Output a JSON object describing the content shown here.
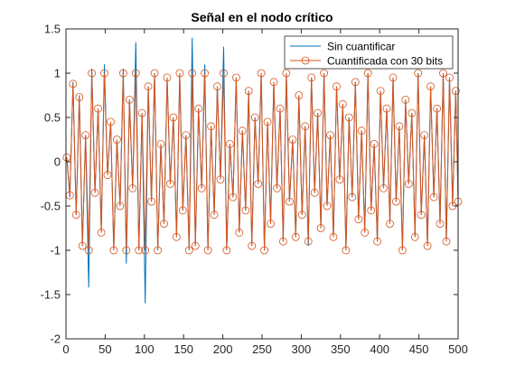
{
  "chart_data": {
    "type": "line",
    "title": "Señal en el nodo crítico",
    "xlabel": "",
    "ylabel": "",
    "xlim": [
      0,
      500
    ],
    "ylim": [
      -2,
      1.5
    ],
    "xticks": [
      "0",
      "50",
      "100",
      "150",
      "200",
      "250",
      "300",
      "350",
      "400",
      "450",
      "500"
    ],
    "yticks": [
      "-2",
      "-1.5",
      "-1",
      "-0.5",
      "0",
      "0.5",
      "1",
      "1.5"
    ],
    "grid": false,
    "legend_position": "top-right",
    "series": [
      {
        "name": "Sin cuantificar",
        "color": "#0072BD",
        "marker": "none",
        "x": [
          1,
          5,
          9,
          13,
          17,
          21,
          25,
          29,
          33,
          37,
          41,
          45,
          49,
          53,
          57,
          61,
          65,
          69,
          73,
          77,
          81,
          85,
          89,
          93,
          97,
          101,
          105,
          109,
          113,
          117,
          121,
          125,
          129,
          133,
          137,
          141,
          145,
          149,
          153,
          157,
          161,
          165,
          169,
          173,
          177,
          181,
          185,
          189,
          193,
          197,
          201,
          205,
          209,
          213,
          217,
          221,
          225,
          229,
          233,
          237,
          241,
          245,
          249,
          253,
          257,
          261,
          265,
          269,
          273,
          277,
          281,
          285,
          289,
          293,
          297,
          301,
          305,
          309,
          313,
          317,
          321,
          325,
          329,
          333,
          337,
          341,
          345,
          349,
          353,
          357,
          361,
          365,
          369,
          373,
          377,
          381,
          385,
          389,
          393,
          397,
          401,
          405,
          409,
          413,
          417,
          421,
          425,
          429,
          433,
          437,
          441,
          445,
          449,
          453,
          457,
          461,
          465,
          469,
          473,
          477,
          481,
          485,
          489,
          493,
          497,
          500
        ],
        "y": [
          0.05,
          -0.4,
          0.9,
          -0.6,
          0.75,
          -0.95,
          0.3,
          -1.42,
          1.05,
          -0.35,
          0.6,
          -0.8,
          1.1,
          -0.15,
          0.45,
          -1.0,
          0.25,
          -0.5,
          1.05,
          -1.15,
          0.7,
          -0.3,
          1.35,
          -1.0,
          0.55,
          -1.6,
          0.85,
          -0.45,
          1.0,
          -1.0,
          0.2,
          -0.7,
          0.95,
          -0.25,
          0.5,
          -0.85,
          1.0,
          -0.55,
          0.3,
          -1.0,
          1.4,
          -0.95,
          0.6,
          -0.3,
          1.1,
          -1.0,
          0.4,
          -0.6,
          0.85,
          -0.2,
          1.3,
          -1.0,
          0.2,
          -0.4,
          0.95,
          -0.8,
          0.35,
          -0.55,
          0.8,
          -0.95,
          0.5,
          -0.25,
          1.0,
          -1.0,
          0.45,
          -0.7,
          0.9,
          -0.3,
          0.6,
          -0.9,
          1.0,
          -0.45,
          0.25,
          -0.85,
          0.75,
          -0.6,
          0.4,
          -0.95,
          0.95,
          -0.35,
          0.55,
          -0.75,
          1.0,
          -0.5,
          0.3,
          -0.85,
          0.85,
          -0.2,
          0.65,
          -1.0,
          0.5,
          -0.4,
          0.9,
          -0.65,
          0.35,
          -0.8,
          1.0,
          -0.55,
          0.2,
          -0.9,
          0.8,
          -0.3,
          0.6,
          -0.7,
          0.95,
          -0.45,
          0.4,
          -1.0,
          0.7,
          -0.25,
          0.55,
          -0.85,
          1.0,
          -0.6,
          0.3,
          -0.95,
          0.85,
          -0.4,
          0.6,
          -0.7,
          1.0,
          -0.9,
          0.95,
          -0.5,
          0.8,
          -0.45
        ]
      },
      {
        "name": "Cuantificada con 30 bits",
        "color": "#D95319",
        "marker": "circle",
        "x": [
          1,
          5,
          9,
          13,
          17,
          21,
          25,
          29,
          33,
          37,
          41,
          45,
          49,
          53,
          57,
          61,
          65,
          69,
          73,
          77,
          81,
          85,
          89,
          93,
          97,
          101,
          105,
          109,
          113,
          117,
          121,
          125,
          129,
          133,
          137,
          141,
          145,
          149,
          153,
          157,
          161,
          165,
          169,
          173,
          177,
          181,
          185,
          189,
          193,
          197,
          201,
          205,
          209,
          213,
          217,
          221,
          225,
          229,
          233,
          237,
          241,
          245,
          249,
          253,
          257,
          261,
          265,
          269,
          273,
          277,
          281,
          285,
          289,
          293,
          297,
          301,
          305,
          309,
          313,
          317,
          321,
          325,
          329,
          333,
          337,
          341,
          345,
          349,
          353,
          357,
          361,
          365,
          369,
          373,
          377,
          381,
          385,
          389,
          393,
          397,
          401,
          405,
          409,
          413,
          417,
          421,
          425,
          429,
          433,
          437,
          441,
          445,
          449,
          453,
          457,
          461,
          465,
          469,
          473,
          477,
          481,
          485,
          489,
          493,
          497,
          500
        ],
        "y": [
          0.05,
          -0.38,
          0.88,
          -0.6,
          0.73,
          -0.95,
          0.3,
          -1.0,
          1.0,
          -0.35,
          0.6,
          -0.8,
          1.0,
          -0.15,
          0.45,
          -1.0,
          0.25,
          -0.5,
          1.0,
          -1.0,
          0.7,
          -0.3,
          1.0,
          -1.0,
          0.55,
          -1.0,
          0.85,
          -0.45,
          1.0,
          -1.0,
          0.2,
          -0.7,
          0.95,
          -0.25,
          0.5,
          -0.85,
          1.0,
          -0.55,
          0.3,
          -1.0,
          1.0,
          -0.95,
          0.6,
          -0.3,
          1.0,
          -1.0,
          0.4,
          -0.6,
          0.85,
          -0.2,
          1.0,
          -1.0,
          0.2,
          -0.4,
          0.95,
          -0.8,
          0.35,
          -0.55,
          0.8,
          -0.95,
          0.5,
          -0.25,
          1.0,
          -1.0,
          0.45,
          -0.7,
          0.9,
          -0.3,
          0.6,
          -0.9,
          1.0,
          -0.45,
          0.25,
          -0.85,
          0.75,
          -0.6,
          0.4,
          -0.9,
          0.95,
          -0.35,
          0.55,
          -0.75,
          1.0,
          -0.5,
          0.3,
          -0.85,
          0.85,
          -0.2,
          0.65,
          -1.0,
          0.5,
          -0.4,
          0.9,
          -0.65,
          0.35,
          -0.8,
          1.0,
          -0.55,
          0.2,
          -0.9,
          0.8,
          -0.3,
          0.6,
          -0.7,
          0.95,
          -0.45,
          0.4,
          -1.0,
          0.7,
          -0.25,
          0.55,
          -0.85,
          1.0,
          -0.6,
          0.3,
          -0.95,
          0.85,
          -0.4,
          0.6,
          -0.7,
          1.0,
          -0.9,
          0.95,
          -0.5,
          0.8,
          -0.45
        ]
      }
    ]
  }
}
